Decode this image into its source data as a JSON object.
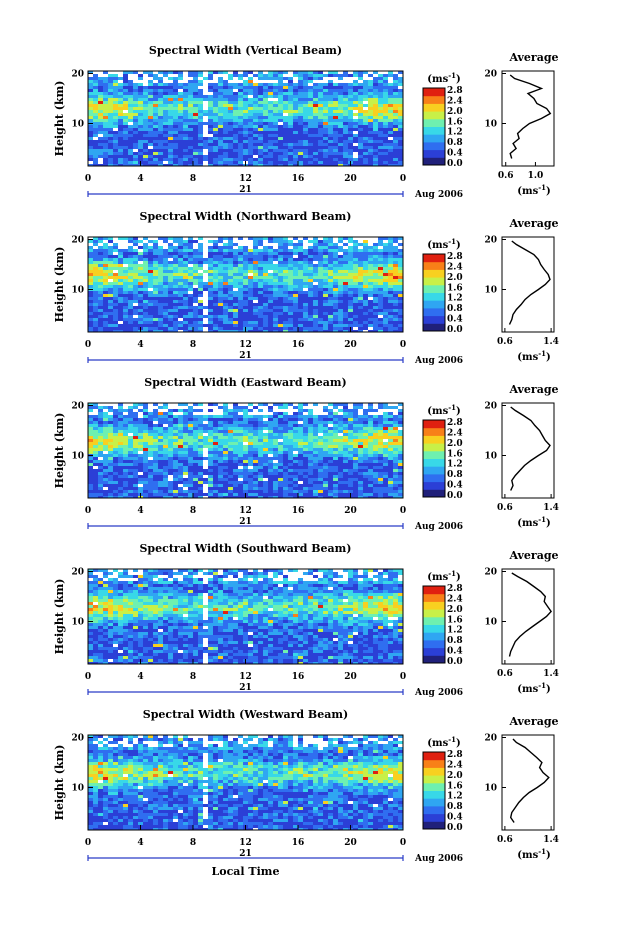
{
  "chart_data": [
    {
      "type": "heatmap",
      "title": "Spectral Width (Vertical Beam)",
      "ylabel": "Height (km)",
      "x_ticks": [
        "0",
        "4",
        "8",
        "12",
        "16",
        "20",
        "0"
      ],
      "y_ticks": [
        "20",
        "10"
      ],
      "xlim": [
        0,
        24
      ],
      "ylim": [
        1.5,
        20.5
      ],
      "date_day": "21",
      "date_label": "Aug 2006",
      "colorbar": {
        "unit": "(ms",
        "unit_sup": "-1",
        "unit_close": ")",
        "ticks": [
          "2.8",
          "2.4",
          "2.0",
          "1.6",
          "1.2",
          "0.8",
          "0.4",
          "0.0"
        ],
        "range": [
          0.0,
          2.8
        ]
      },
      "profile": {
        "title": "Average",
        "xlabel": "(ms",
        "xlabel_sup": "-1",
        "xlabel_close": ")",
        "x_ticks": [
          "0.6",
          "1.0"
        ],
        "y_ticks": [
          "20",
          "10"
        ],
        "xlim": [
          0.55,
          1.25
        ],
        "heights": [
          3,
          4,
          5,
          6,
          7,
          8,
          9,
          10,
          11,
          12,
          13,
          14,
          15,
          16,
          17,
          18,
          19,
          19.7
        ],
        "values": [
          0.68,
          0.66,
          0.74,
          0.7,
          0.78,
          0.76,
          0.83,
          0.92,
          1.08,
          1.2,
          1.15,
          1.02,
          0.98,
          0.9,
          1.08,
          0.92,
          0.72,
          0.66
        ]
      }
    },
    {
      "type": "heatmap",
      "title": "Spectral Width (Northward Beam)",
      "ylabel": "Height (km)",
      "x_ticks": [
        "0",
        "4",
        "8",
        "12",
        "16",
        "20",
        "0"
      ],
      "y_ticks": [
        "20",
        "10"
      ],
      "xlim": [
        0,
        24
      ],
      "ylim": [
        1.5,
        20.5
      ],
      "date_day": "21",
      "date_label": "Aug 2006",
      "colorbar": {
        "unit": "(ms",
        "unit_sup": "-1",
        "unit_close": ")",
        "ticks": [
          "2.8",
          "2.4",
          "2.0",
          "1.6",
          "1.2",
          "0.8",
          "0.4",
          "0.0"
        ],
        "range": [
          0.0,
          2.8
        ]
      },
      "profile": {
        "title": "Average",
        "xlabel": "(ms",
        "xlabel_sup": "-1",
        "xlabel_close": ")",
        "x_ticks": [
          "0.6",
          "1.4"
        ],
        "y_ticks": [
          "20",
          "10"
        ],
        "xlim": [
          0.55,
          1.45
        ],
        "heights": [
          3,
          4,
          5,
          6,
          7,
          8,
          9,
          10,
          11,
          12,
          13,
          14,
          15,
          16,
          17,
          18,
          19,
          19.7
        ],
        "values": [
          0.68,
          0.72,
          0.74,
          0.8,
          0.88,
          0.95,
          1.05,
          1.18,
          1.3,
          1.38,
          1.35,
          1.28,
          1.22,
          1.18,
          1.1,
          0.95,
          0.8,
          0.72
        ]
      }
    },
    {
      "type": "heatmap",
      "title": "Spectral Width (Eastward Beam)",
      "ylabel": "Height (km)",
      "x_ticks": [
        "0",
        "4",
        "8",
        "12",
        "16",
        "20",
        "0"
      ],
      "y_ticks": [
        "20",
        "10"
      ],
      "xlim": [
        0,
        24
      ],
      "ylim": [
        1.5,
        20.5
      ],
      "date_day": "21",
      "date_label": "Aug 2006",
      "colorbar": {
        "unit": "(ms",
        "unit_sup": "-1",
        "unit_close": ")",
        "ticks": [
          "2.8",
          "2.4",
          "2.0",
          "1.6",
          "1.2",
          "0.8",
          "0.4",
          "0.0"
        ],
        "range": [
          0.0,
          2.8
        ]
      },
      "profile": {
        "title": "Average",
        "xlabel": "(ms",
        "xlabel_sup": "-1",
        "xlabel_close": ")",
        "x_ticks": [
          "0.6",
          "1.4"
        ],
        "y_ticks": [
          "20",
          "10"
        ],
        "xlim": [
          0.55,
          1.45
        ],
        "heights": [
          3,
          4,
          5,
          6,
          7,
          8,
          9,
          10,
          11,
          12,
          13,
          14,
          15,
          16,
          17,
          18,
          19,
          19.7
        ],
        "values": [
          0.7,
          0.74,
          0.72,
          0.78,
          0.86,
          0.94,
          1.05,
          1.18,
          1.32,
          1.38,
          1.3,
          1.25,
          1.2,
          1.12,
          1.05,
          0.92,
          0.78,
          0.7
        ]
      }
    },
    {
      "type": "heatmap",
      "title": "Spectral Width (Southward Beam)",
      "ylabel": "Height (km)",
      "x_ticks": [
        "0",
        "4",
        "8",
        "12",
        "16",
        "20",
        "0"
      ],
      "y_ticks": [
        "20",
        "10"
      ],
      "xlim": [
        0,
        24
      ],
      "ylim": [
        1.5,
        20.5
      ],
      "date_day": "21",
      "date_label": "Aug 2006",
      "colorbar": {
        "unit": "(ms",
        "unit_sup": "-1",
        "unit_close": ")",
        "ticks": [
          "2.8",
          "2.4",
          "2.0",
          "1.6",
          "1.2",
          "0.8",
          "0.4",
          "0.0"
        ],
        "range": [
          0.0,
          2.8
        ]
      },
      "profile": {
        "title": "Average",
        "xlabel": "(ms",
        "xlabel_sup": "-1",
        "xlabel_close": ")",
        "x_ticks": [
          "0.6",
          "1.4"
        ],
        "y_ticks": [
          "20",
          "10"
        ],
        "xlim": [
          0.55,
          1.45
        ],
        "heights": [
          3,
          4,
          5,
          6,
          7,
          8,
          9,
          10,
          11,
          12,
          13,
          14,
          15,
          16,
          17,
          18,
          19,
          19.7
        ],
        "values": [
          0.68,
          0.7,
          0.74,
          0.78,
          0.86,
          0.96,
          1.08,
          1.2,
          1.32,
          1.4,
          1.34,
          1.28,
          1.3,
          1.22,
          1.1,
          0.98,
          0.82,
          0.72
        ]
      }
    },
    {
      "type": "heatmap",
      "title": "Spectral Width (Westward Beam)",
      "ylabel": "Height (km)",
      "x_ticks": [
        "0",
        "4",
        "8",
        "12",
        "16",
        "20",
        "0"
      ],
      "y_ticks": [
        "20",
        "10"
      ],
      "xlim": [
        0,
        24
      ],
      "ylim": [
        1.5,
        20.5
      ],
      "date_day": "21",
      "date_label": "Aug 2006",
      "xlabel": "Local Time",
      "colorbar": {
        "unit": "(ms",
        "unit_sup": "-1",
        "unit_close": ")",
        "ticks": [
          "2.8",
          "2.4",
          "2.0",
          "1.6",
          "1.2",
          "0.8",
          "0.4",
          "0.0"
        ],
        "range": [
          0.0,
          2.8
        ]
      },
      "profile": {
        "title": "Average",
        "xlabel": "(ms",
        "xlabel_sup": "-1",
        "xlabel_close": ")",
        "x_ticks": [
          "0.6",
          "1.4"
        ],
        "y_ticks": [
          "20",
          "10"
        ],
        "xlim": [
          0.55,
          1.45
        ],
        "heights": [
          3,
          4,
          5,
          6,
          7,
          8,
          9,
          10,
          11,
          12,
          13,
          14,
          15,
          16,
          17,
          18,
          19,
          19.7
        ],
        "values": [
          0.76,
          0.7,
          0.72,
          0.78,
          0.84,
          0.92,
          1.02,
          1.16,
          1.28,
          1.36,
          1.26,
          1.2,
          1.24,
          1.15,
          1.05,
          0.95,
          0.8,
          0.74
        ]
      }
    }
  ],
  "colors": {
    "colormap": [
      "#20207a",
      "#2b3fd6",
      "#2f6ef0",
      "#2fa6f2",
      "#38d8e8",
      "#6ef0b0",
      "#c8f048",
      "#f8d020",
      "#f88018",
      "#e02010"
    ],
    "line": "#000000"
  }
}
